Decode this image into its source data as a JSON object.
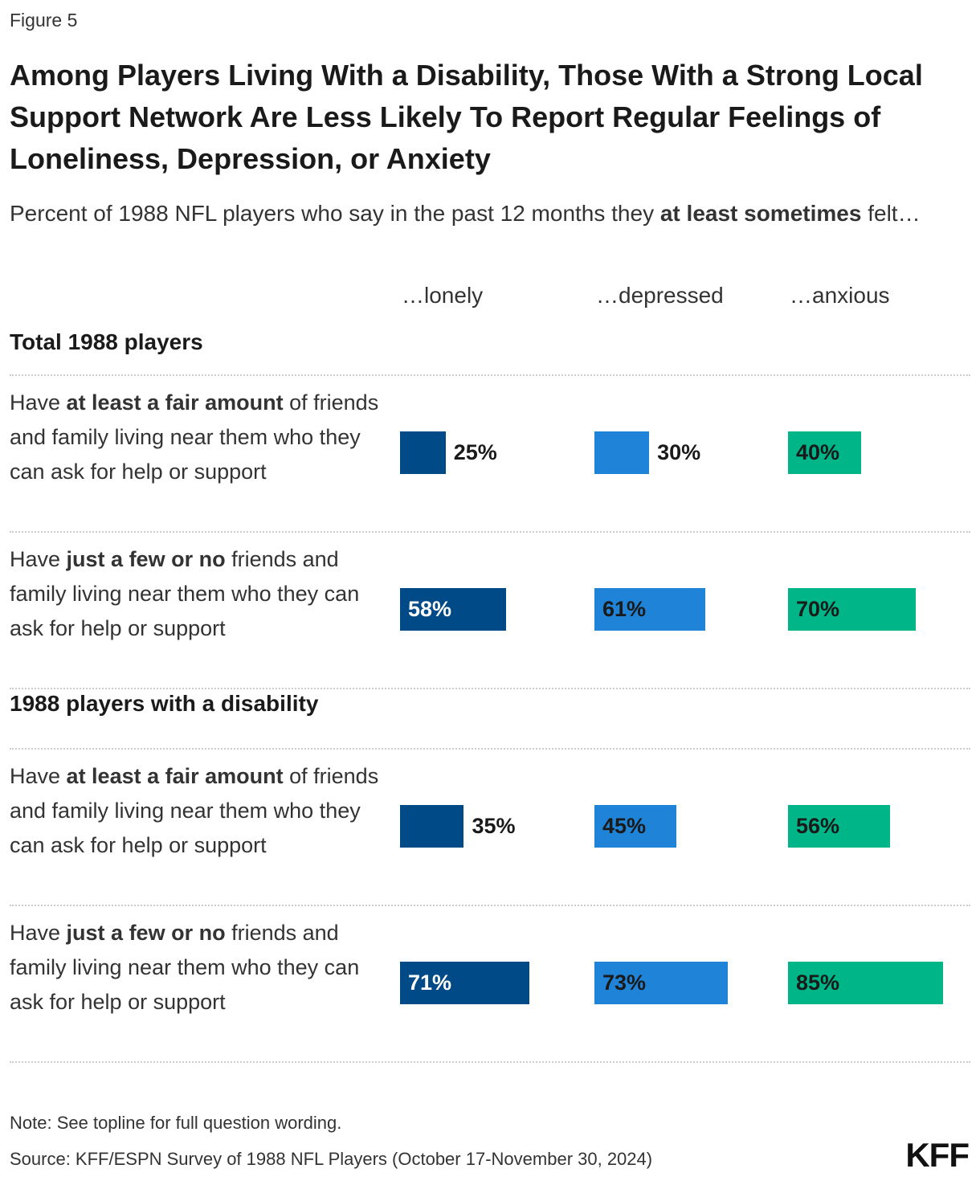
{
  "chart_data": {
    "type": "bar",
    "label": "Figure 5",
    "title": "Among Players Living With a Disability, Those With a Strong Local Support Network Are Less Likely To Report Regular Feelings of Loneliness, Depression, or Anxiety",
    "subtitle": [
      {
        "text": "Percent of 1988 NFL players who say in the past 12 months they ",
        "bold": false
      },
      {
        "text": "at least sometimes",
        "bold": true
      },
      {
        "text": " felt…",
        "bold": false
      }
    ],
    "groups": [
      {
        "name": "Total 1988 players",
        "categories": [
          [
            {
              "text": "Have ",
              "bold": false
            },
            {
              "text": "at least a fair amount",
              "bold": true
            },
            {
              "text": " of friends and family living near them who they can ask for help or support",
              "bold": false
            }
          ],
          [
            {
              "text": "Have ",
              "bold": false
            },
            {
              "text": "just a few or no",
              "bold": true
            },
            {
              "text": " friends and family living near them who they can ask for help or support",
              "bold": false
            }
          ]
        ]
      },
      {
        "name": "1988 players with a disability",
        "categories": [
          [
            {
              "text": "Have ",
              "bold": false
            },
            {
              "text": "at least a fair amount",
              "bold": true
            },
            {
              "text": " of friends and family living near them who they can ask for help or support",
              "bold": false
            }
          ],
          [
            {
              "text": "Have ",
              "bold": false
            },
            {
              "text": "just a few or no",
              "bold": true
            },
            {
              "text": " friends and family living near them who they can ask for help or support",
              "bold": false
            }
          ]
        ]
      }
    ],
    "series": [
      {
        "name": "…lonely",
        "color": "#004b87",
        "values": [
          25,
          58,
          35,
          71
        ],
        "value_labels": [
          "25%",
          "58%",
          "35%",
          "71%"
        ]
      },
      {
        "name": "…depressed",
        "color": "#1f83d8",
        "values": [
          30,
          61,
          45,
          73
        ],
        "value_labels": [
          "30%",
          "61%",
          "45%",
          "73%"
        ]
      },
      {
        "name": "…anxious",
        "color": "#00b587",
        "values": [
          40,
          70,
          56,
          85
        ],
        "value_labels": [
          "40%",
          "70%",
          "56%",
          "85%"
        ]
      }
    ],
    "note": "Note: See topline for full question wording.",
    "source": "Source: KFF/ESPN Survey of 1988 NFL Players (October 17-November 30, 2024)",
    "logo": "KFF"
  }
}
